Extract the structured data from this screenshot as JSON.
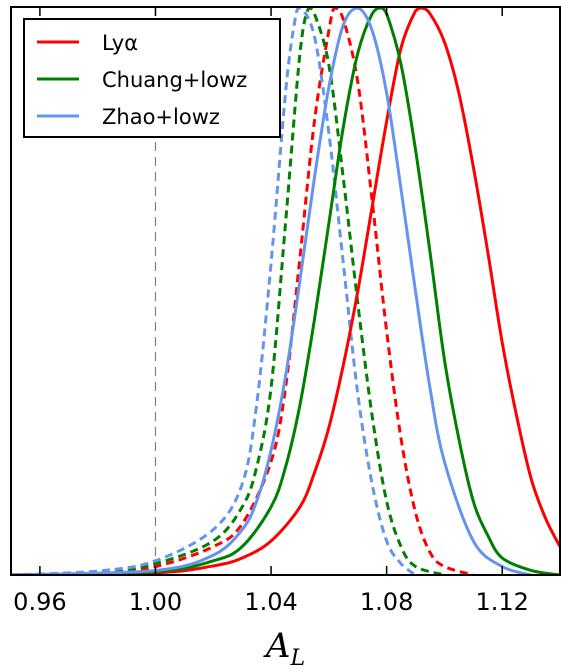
{
  "chart_data": {
    "type": "line",
    "title": "",
    "xlabel": "A",
    "xlabel_subscript": "L",
    "ylabel": "",
    "xlim": [
      0.95,
      1.14
    ],
    "ylim": [
      0,
      1.0
    ],
    "xticks": [
      0.96,
      1.0,
      1.04,
      1.08,
      1.12
    ],
    "xtick_labels": [
      "0.96",
      "1.00",
      "1.04",
      "1.08",
      "1.12"
    ],
    "yticks_visible": false,
    "grid": false,
    "reference_line": {
      "x": 1.0,
      "style": "dashed",
      "color": "#808080"
    },
    "legend": {
      "position": "top-left",
      "entries": [
        {
          "label": "Lyα",
          "color": "#ff0000"
        },
        {
          "label": "Chuang+lowz",
          "color": "#008000"
        },
        {
          "label": "Zhao+lowz",
          "color": "#6495ed"
        }
      ]
    },
    "series": [
      {
        "name": "Lyα",
        "style": "solid",
        "color": "#ff0000",
        "x": [
          0.95,
          1.0,
          1.02,
          1.03,
          1.04,
          1.05,
          1.055,
          1.06,
          1.065,
          1.07,
          1.075,
          1.08,
          1.085,
          1.09,
          1.092,
          1.095,
          1.1,
          1.105,
          1.11,
          1.115,
          1.12,
          1.125,
          1.13,
          1.135,
          1.14
        ],
        "y": [
          0.0,
          0.004,
          0.016,
          0.03,
          0.06,
          0.12,
          0.18,
          0.26,
          0.37,
          0.5,
          0.65,
          0.8,
          0.93,
          0.995,
          1.0,
          0.99,
          0.94,
          0.85,
          0.72,
          0.57,
          0.41,
          0.28,
          0.17,
          0.1,
          0.05
        ]
      },
      {
        "name": "Lyα",
        "style": "dashed",
        "color": "#ff0000",
        "x": [
          0.95,
          0.98,
          1.0,
          1.02,
          1.03,
          1.04,
          1.045,
          1.05,
          1.055,
          1.06,
          1.062,
          1.065,
          1.07,
          1.075,
          1.08,
          1.085,
          1.09,
          1.095,
          1.1,
          1.11
        ],
        "y": [
          0.0,
          0.004,
          0.015,
          0.05,
          0.09,
          0.2,
          0.33,
          0.56,
          0.8,
          0.96,
          1.0,
          0.98,
          0.87,
          0.66,
          0.43,
          0.24,
          0.11,
          0.04,
          0.015,
          0.0
        ]
      },
      {
        "name": "Chuang+lowz",
        "style": "solid",
        "color": "#008000",
        "x": [
          0.95,
          1.0,
          1.02,
          1.03,
          1.04,
          1.045,
          1.05,
          1.055,
          1.06,
          1.065,
          1.07,
          1.075,
          1.078,
          1.08,
          1.085,
          1.09,
          1.095,
          1.1,
          1.105,
          1.11,
          1.115,
          1.12,
          1.13,
          1.14
        ],
        "y": [
          0.0,
          0.006,
          0.025,
          0.05,
          0.12,
          0.19,
          0.3,
          0.45,
          0.62,
          0.79,
          0.92,
          0.99,
          1.0,
          0.99,
          0.9,
          0.75,
          0.57,
          0.38,
          0.24,
          0.13,
          0.07,
          0.03,
          0.008,
          0.0
        ]
      },
      {
        "name": "Chuang+lowz",
        "style": "dashed",
        "color": "#008000",
        "x": [
          0.95,
          0.98,
          1.0,
          1.02,
          1.03,
          1.035,
          1.04,
          1.045,
          1.05,
          1.053,
          1.055,
          1.06,
          1.065,
          1.07,
          1.075,
          1.08,
          1.085,
          1.09,
          1.1
        ],
        "y": [
          0.0,
          0.005,
          0.02,
          0.06,
          0.12,
          0.19,
          0.33,
          0.62,
          0.92,
          1.0,
          0.99,
          0.9,
          0.7,
          0.48,
          0.28,
          0.13,
          0.05,
          0.015,
          0.0
        ]
      },
      {
        "name": "Zhao+lowz",
        "style": "solid",
        "color": "#6495ed",
        "x": [
          0.95,
          1.0,
          1.02,
          1.03,
          1.035,
          1.04,
          1.045,
          1.05,
          1.055,
          1.06,
          1.065,
          1.07,
          1.075,
          1.08,
          1.085,
          1.09,
          1.095,
          1.1,
          1.11,
          1.12,
          1.13
        ],
        "y": [
          0.0,
          0.008,
          0.035,
          0.08,
          0.13,
          0.22,
          0.35,
          0.52,
          0.7,
          0.86,
          0.97,
          1.0,
          0.96,
          0.85,
          0.68,
          0.5,
          0.33,
          0.2,
          0.06,
          0.015,
          0.0
        ]
      },
      {
        "name": "Zhao+lowz",
        "style": "dashed",
        "color": "#6495ed",
        "x": [
          0.95,
          0.98,
          1.0,
          1.02,
          1.03,
          1.035,
          1.04,
          1.045,
          1.048,
          1.05,
          1.055,
          1.06,
          1.065,
          1.07,
          1.075,
          1.08,
          1.085,
          1.09
        ],
        "y": [
          0.0,
          0.007,
          0.025,
          0.08,
          0.16,
          0.3,
          0.55,
          0.85,
          0.97,
          1.0,
          0.95,
          0.78,
          0.55,
          0.32,
          0.16,
          0.06,
          0.02,
          0.0
        ]
      }
    ]
  }
}
